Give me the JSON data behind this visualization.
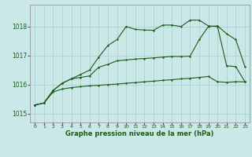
{
  "background_color": "#cbe8e8",
  "grid_color": "#a8cccc",
  "line_color": "#1a5c1a",
  "xlabel": "Graphe pression niveau de la mer (hPa)",
  "xlim": [
    -0.5,
    23.5
  ],
  "ylim": [
    1014.7,
    1018.75
  ],
  "yticks": [
    1015,
    1016,
    1017,
    1018
  ],
  "xticks": [
    0,
    1,
    2,
    3,
    4,
    5,
    6,
    7,
    8,
    9,
    10,
    11,
    12,
    13,
    14,
    15,
    16,
    17,
    18,
    19,
    20,
    21,
    22,
    23
  ],
  "series1_x": [
    0,
    1,
    2,
    3,
    4,
    5,
    6,
    7,
    8,
    9,
    10,
    11,
    12,
    13,
    14,
    15,
    16,
    17,
    18,
    19,
    20,
    21,
    22,
    23
  ],
  "series1_y": [
    1015.3,
    1015.37,
    1015.75,
    1015.85,
    1015.9,
    1015.93,
    1015.96,
    1015.98,
    1016.0,
    1016.02,
    1016.05,
    1016.07,
    1016.1,
    1016.12,
    1016.15,
    1016.17,
    1016.2,
    1016.22,
    1016.25,
    1016.28,
    1016.1,
    1016.08,
    1016.1,
    1016.1
  ],
  "series2_x": [
    0,
    1,
    2,
    3,
    4,
    5,
    6,
    7,
    8,
    9,
    10,
    11,
    12,
    13,
    14,
    15,
    16,
    17,
    18,
    19,
    20,
    21,
    22,
    23
  ],
  "series2_y": [
    1015.3,
    1015.37,
    1015.8,
    1016.05,
    1016.2,
    1016.35,
    1016.5,
    1016.95,
    1017.35,
    1017.55,
    1018.0,
    1017.9,
    1017.88,
    1017.87,
    1018.05,
    1018.05,
    1018.0,
    1018.22,
    1018.22,
    1018.02,
    1018.0,
    1016.65,
    1016.62,
    1016.1
  ],
  "series3_x": [
    0,
    1,
    2,
    3,
    4,
    5,
    6,
    7,
    8,
    9,
    10,
    11,
    12,
    13,
    14,
    15,
    16,
    17,
    18,
    19,
    20,
    21,
    22,
    23
  ],
  "series3_y": [
    1015.3,
    1015.37,
    1015.8,
    1016.05,
    1016.2,
    1016.25,
    1016.3,
    1016.6,
    1016.7,
    1016.82,
    1016.85,
    1016.88,
    1016.9,
    1016.92,
    1016.95,
    1016.97,
    1016.97,
    1016.98,
    1017.55,
    1018.0,
    1018.02,
    1017.75,
    1017.55,
    1016.62
  ]
}
